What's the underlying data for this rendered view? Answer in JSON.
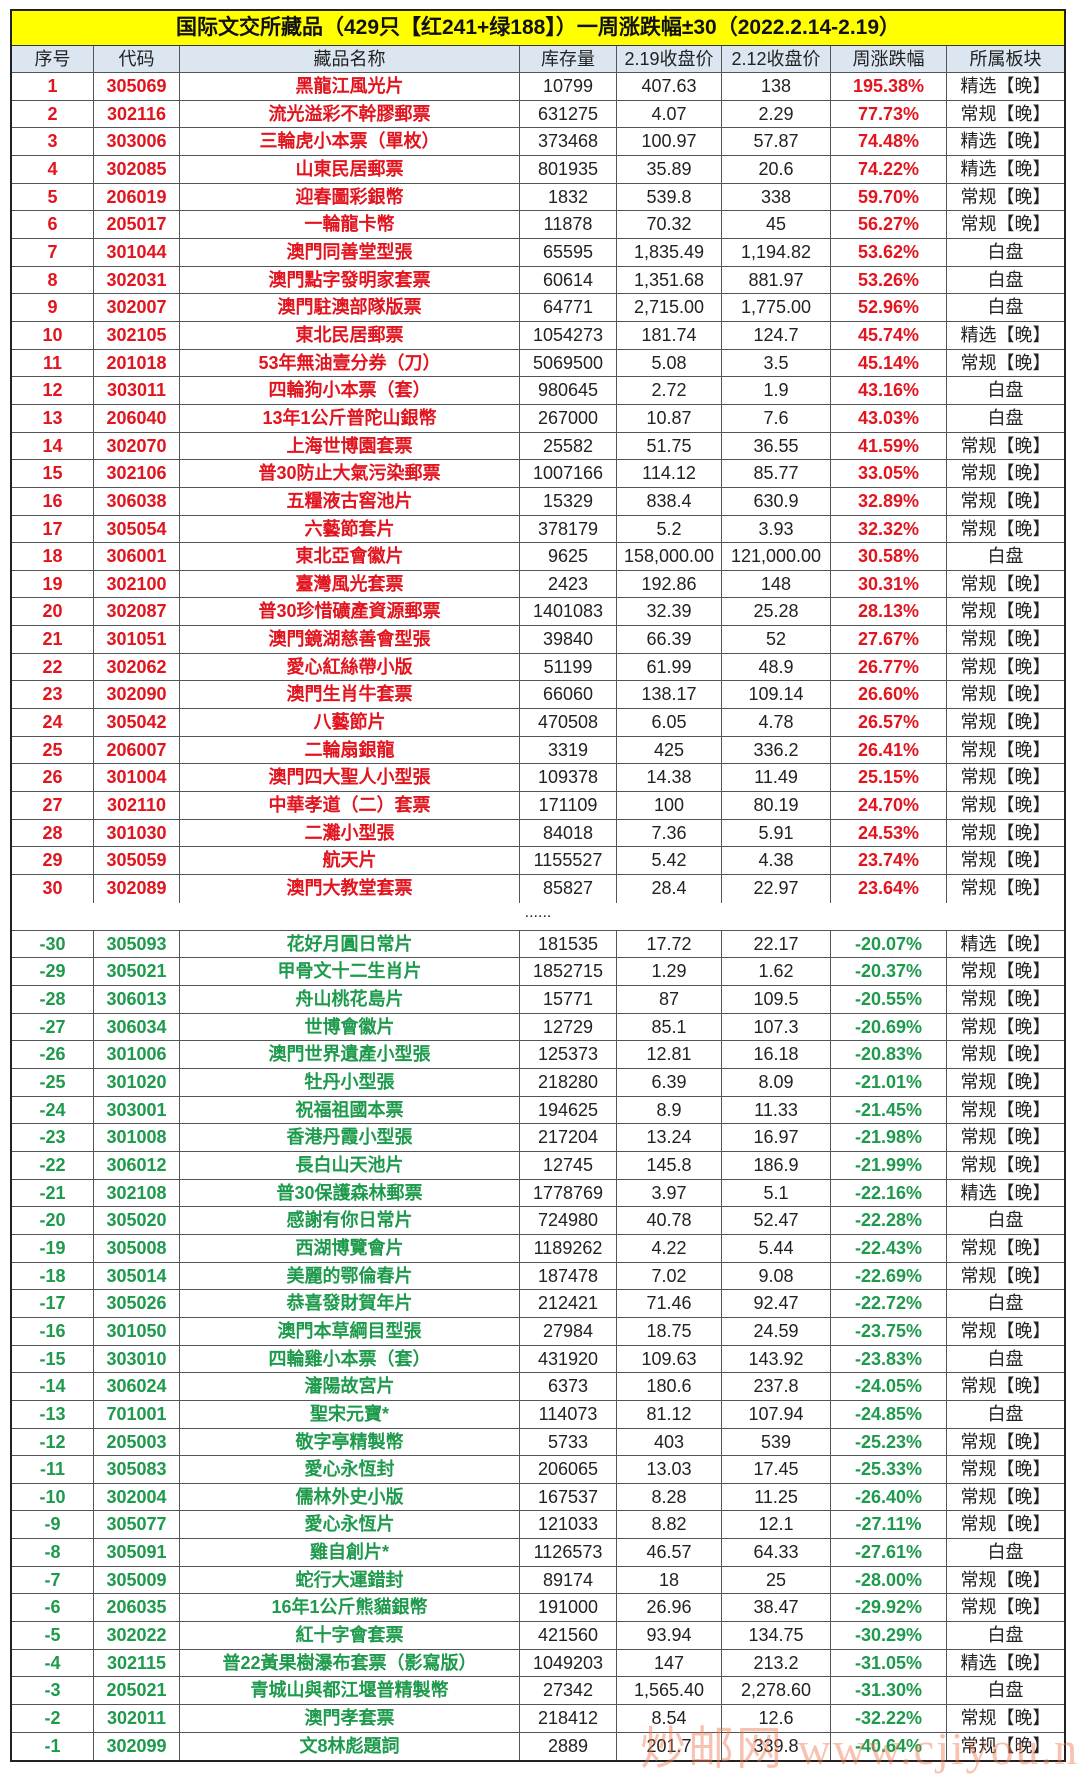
{
  "title": "国际文交所藏品（429只【红241+绿188】）一周涨跌幅±30（2022.2.14-2.19）",
  "headers": [
    "序号",
    "代码",
    "藏品名称",
    "库存量",
    "2.19收盘价",
    "2.12收盘价",
    "周涨跌幅",
    "所属板块"
  ],
  "colors": {
    "up": "#e2141e",
    "down": "#1e9a4c",
    "title_bg": "#ffff00",
    "header_bg": "#dce6f1"
  },
  "separator": "......",
  "watermark": "炒邮网 www.cjiyou.net",
  "up_rows": [
    [
      "1",
      "305069",
      "黑龍江風光片",
      "10799",
      "407.63",
      "138",
      "195.38%",
      "精选【晚】"
    ],
    [
      "2",
      "302116",
      "流光溢彩不幹膠郵票",
      "631275",
      "4.07",
      "2.29",
      "77.73%",
      "常规【晚】"
    ],
    [
      "3",
      "303006",
      "三輪虎小本票（單枚）",
      "373468",
      "100.97",
      "57.87",
      "74.48%",
      "精选【晚】"
    ],
    [
      "4",
      "302085",
      "山東民居郵票",
      "801935",
      "35.89",
      "20.6",
      "74.22%",
      "精选【晚】"
    ],
    [
      "5",
      "206019",
      "迎春圖彩銀幣",
      "1832",
      "539.8",
      "338",
      "59.70%",
      "常规【晚】"
    ],
    [
      "6",
      "205017",
      "一輪龍卡幣",
      "11878",
      "70.32",
      "45",
      "56.27%",
      "常规【晚】"
    ],
    [
      "7",
      "301044",
      "澳門同善堂型張",
      "65595",
      "1,835.49",
      "1,194.82",
      "53.62%",
      "白盘"
    ],
    [
      "8",
      "302031",
      "澳門點字發明家套票",
      "60614",
      "1,351.68",
      "881.97",
      "53.26%",
      "白盘"
    ],
    [
      "9",
      "302007",
      "澳門駐澳部隊版票",
      "64771",
      "2,715.00",
      "1,775.00",
      "52.96%",
      "白盘"
    ],
    [
      "10",
      "302105",
      "東北民居郵票",
      "1054273",
      "181.74",
      "124.7",
      "45.74%",
      "精选【晚】"
    ],
    [
      "11",
      "201018",
      "53年無油壹分券（刀）",
      "5069500",
      "5.08",
      "3.5",
      "45.14%",
      "常规【晚】"
    ],
    [
      "12",
      "303011",
      "四輪狗小本票（套）",
      "980645",
      "2.72",
      "1.9",
      "43.16%",
      "白盘"
    ],
    [
      "13",
      "206040",
      "13年1公斤普陀山銀幣",
      "267000",
      "10.87",
      "7.6",
      "43.03%",
      "白盘"
    ],
    [
      "14",
      "302070",
      "上海世博園套票",
      "25582",
      "51.75",
      "36.55",
      "41.59%",
      "常规【晚】"
    ],
    [
      "15",
      "302106",
      "普30防止大氣污染郵票",
      "1007166",
      "114.12",
      "85.77",
      "33.05%",
      "常规【晚】"
    ],
    [
      "16",
      "306038",
      "五糧液古窖池片",
      "15329",
      "838.4",
      "630.9",
      "32.89%",
      "常规【晚】"
    ],
    [
      "17",
      "305054",
      "六藝節套片",
      "378179",
      "5.2",
      "3.93",
      "32.32%",
      "常规【晚】"
    ],
    [
      "18",
      "306001",
      "東北亞會徽片",
      "9625",
      "158,000.00",
      "121,000.00",
      "30.58%",
      "白盘"
    ],
    [
      "19",
      "302100",
      "臺灣風光套票",
      "2423",
      "192.86",
      "148",
      "30.31%",
      "常规【晚】"
    ],
    [
      "20",
      "302087",
      "普30珍惜礦產資源郵票",
      "1401083",
      "32.39",
      "25.28",
      "28.13%",
      "常规【晚】"
    ],
    [
      "21",
      "301051",
      "澳門鏡湖慈善會型張",
      "39840",
      "66.39",
      "52",
      "27.67%",
      "常规【晚】"
    ],
    [
      "22",
      "302062",
      "愛心紅絲帶小版",
      "51199",
      "61.99",
      "48.9",
      "26.77%",
      "常规【晚】"
    ],
    [
      "23",
      "302090",
      "澳門生肖牛套票",
      "66060",
      "138.17",
      "109.14",
      "26.60%",
      "常规【晚】"
    ],
    [
      "24",
      "305042",
      "八藝節片",
      "470508",
      "6.05",
      "4.78",
      "26.57%",
      "常规【晚】"
    ],
    [
      "25",
      "206007",
      "二輪扇銀龍",
      "3319",
      "425",
      "336.2",
      "26.41%",
      "常规【晚】"
    ],
    [
      "26",
      "301004",
      "澳門四大聖人小型張",
      "109378",
      "14.38",
      "11.49",
      "25.15%",
      "常规【晚】"
    ],
    [
      "27",
      "302110",
      "中華孝道（二）套票",
      "171109",
      "100",
      "80.19",
      "24.70%",
      "常规【晚】"
    ],
    [
      "28",
      "301030",
      "二灘小型張",
      "84018",
      "7.36",
      "5.91",
      "24.53%",
      "常规【晚】"
    ],
    [
      "29",
      "305059",
      "航天片",
      "1155527",
      "5.42",
      "4.38",
      "23.74%",
      "常规【晚】"
    ],
    [
      "30",
      "302089",
      "澳門大教堂套票",
      "85827",
      "28.4",
      "22.97",
      "23.64%",
      "常规【晚】"
    ]
  ],
  "down_rows": [
    [
      "-30",
      "305093",
      "花好月圓日常片",
      "181535",
      "17.72",
      "22.17",
      "-20.07%",
      "精选【晚】"
    ],
    [
      "-29",
      "305021",
      "甲骨文十二生肖片",
      "1852715",
      "1.29",
      "1.62",
      "-20.37%",
      "常规【晚】"
    ],
    [
      "-28",
      "306013",
      "舟山桃花島片",
      "15771",
      "87",
      "109.5",
      "-20.55%",
      "常规【晚】"
    ],
    [
      "-27",
      "306034",
      "世博會徽片",
      "12729",
      "85.1",
      "107.3",
      "-20.69%",
      "常规【晚】"
    ],
    [
      "-26",
      "301006",
      "澳門世界遺產小型張",
      "125373",
      "12.81",
      "16.18",
      "-20.83%",
      "常规【晚】"
    ],
    [
      "-25",
      "301020",
      "牡丹小型張",
      "218280",
      "6.39",
      "8.09",
      "-21.01%",
      "常规【晚】"
    ],
    [
      "-24",
      "303001",
      "祝福祖國本票",
      "194625",
      "8.9",
      "11.33",
      "-21.45%",
      "常规【晚】"
    ],
    [
      "-23",
      "301008",
      "香港丹霞小型張",
      "217204",
      "13.24",
      "16.97",
      "-21.98%",
      "常规【晚】"
    ],
    [
      "-22",
      "306012",
      "長白山天池片",
      "12745",
      "145.8",
      "186.9",
      "-21.99%",
      "常规【晚】"
    ],
    [
      "-21",
      "302108",
      "普30保護森林郵票",
      "1778769",
      "3.97",
      "5.1",
      "-22.16%",
      "精选【晚】"
    ],
    [
      "-20",
      "305020",
      "感謝有你日常片",
      "724980",
      "40.78",
      "52.47",
      "-22.28%",
      "白盘"
    ],
    [
      "-19",
      "305008",
      "西湖博覽會片",
      "1189262",
      "4.22",
      "5.44",
      "-22.43%",
      "常规【晚】"
    ],
    [
      "-18",
      "305014",
      "美麗的鄂倫春片",
      "187478",
      "7.02",
      "9.08",
      "-22.69%",
      "常规【晚】"
    ],
    [
      "-17",
      "305026",
      "恭喜發財賀年片",
      "212421",
      "71.46",
      "92.47",
      "-22.72%",
      "白盘"
    ],
    [
      "-16",
      "301050",
      "澳門本草綱目型張",
      "27984",
      "18.75",
      "24.59",
      "-23.75%",
      "常规【晚】"
    ],
    [
      "-15",
      "303010",
      "四輪雞小本票（套）",
      "431920",
      "109.63",
      "143.92",
      "-23.83%",
      "白盘"
    ],
    [
      "-14",
      "306024",
      "瀋陽故宮片",
      "6373",
      "180.6",
      "237.8",
      "-24.05%",
      "常规【晚】"
    ],
    [
      "-13",
      "701001",
      "聖宋元寶*",
      "114073",
      "81.12",
      "107.94",
      "-24.85%",
      "白盘"
    ],
    [
      "-12",
      "205003",
      "敬字亭精製幣",
      "5733",
      "403",
      "539",
      "-25.23%",
      "常规【晚】"
    ],
    [
      "-11",
      "305083",
      "愛心永恆封",
      "206065",
      "13.03",
      "17.45",
      "-25.33%",
      "常规【晚】"
    ],
    [
      "-10",
      "302004",
      "儒林外史小版",
      "167537",
      "8.28",
      "11.25",
      "-26.40%",
      "常规【晚】"
    ],
    [
      "-9",
      "305077",
      "愛心永恆片",
      "121033",
      "8.82",
      "12.1",
      "-27.11%",
      "常规【晚】"
    ],
    [
      "-8",
      "305091",
      "雞自創片*",
      "1126573",
      "46.57",
      "64.33",
      "-27.61%",
      "白盘"
    ],
    [
      "-7",
      "305009",
      "蛇行大運錯封",
      "89174",
      "18",
      "25",
      "-28.00%",
      "常规【晚】"
    ],
    [
      "-6",
      "206035",
      "16年1公斤熊貓銀幣",
      "191000",
      "26.96",
      "38.47",
      "-29.92%",
      "常规【晚】"
    ],
    [
      "-5",
      "302022",
      "紅十字會套票",
      "421560",
      "93.94",
      "134.75",
      "-30.29%",
      "白盘"
    ],
    [
      "-4",
      "302115",
      "普22黃果樹瀑布套票（影寫版）",
      "1049203",
      "147",
      "213.2",
      "-31.05%",
      "精选【晚】"
    ],
    [
      "-3",
      "205021",
      "青城山與都江堰普精製幣",
      "27342",
      "1,565.40",
      "2,278.60",
      "-31.30%",
      "白盘"
    ],
    [
      "-2",
      "302011",
      "澳門孝套票",
      "218412",
      "8.54",
      "12.6",
      "-32.22%",
      "常规【晚】"
    ],
    [
      "-1",
      "302099",
      "文8林彪題詞",
      "2889",
      "201.7",
      "339.8",
      "-40.64%",
      "常规【晚】"
    ]
  ]
}
